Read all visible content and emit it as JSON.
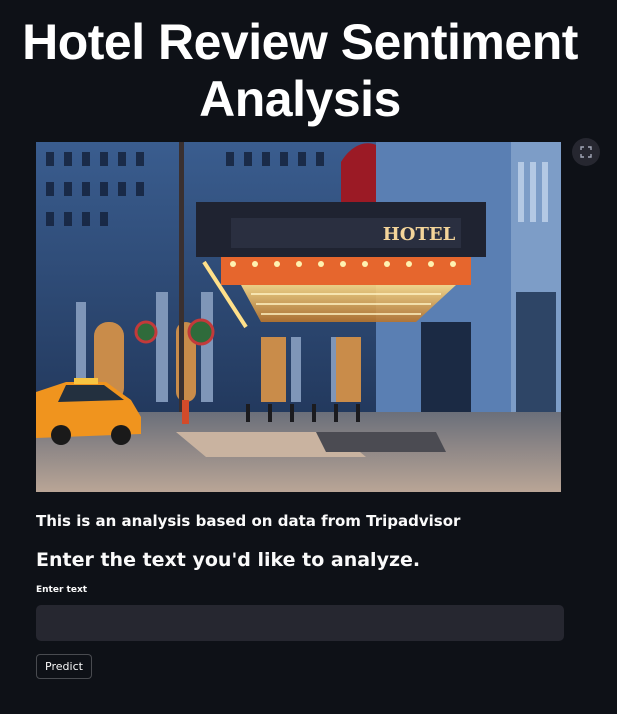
{
  "page": {
    "title": "Hotel Review Sentiment Analysis",
    "caption": "This is an analysis based on data from Tripadvisor",
    "subheader": "Enter the text you'd like to analyze."
  },
  "hero_image": {
    "sign_text": "HOTEL"
  },
  "form": {
    "input_label": "Enter text",
    "input_value": "",
    "predict_label": "Predict"
  },
  "icons": {
    "fullscreen": "fullscreen-expand-icon"
  },
  "colors": {
    "background": "#0e1117",
    "input_bg": "#262730",
    "text": "#fafafa"
  }
}
